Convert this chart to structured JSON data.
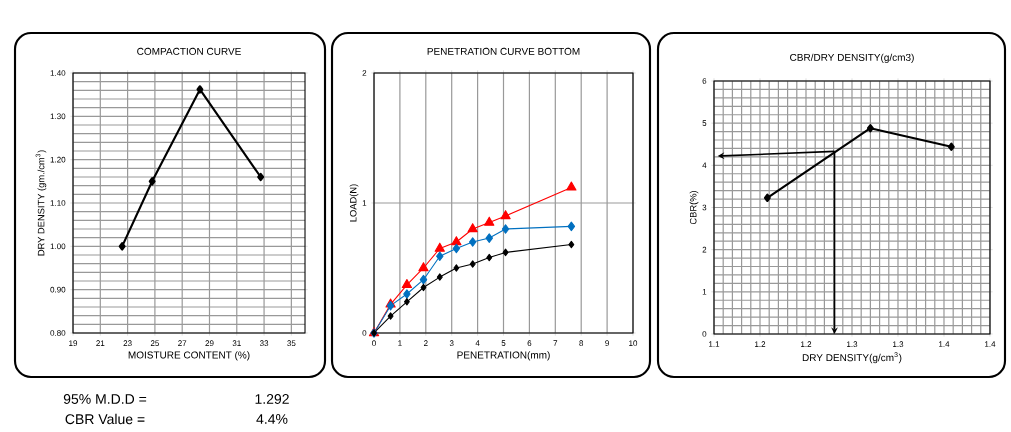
{
  "chart_data": [
    {
      "type": "line",
      "title": "COMPACTION CURVE",
      "xlabel": "MOISTURE CONTENT (%)",
      "ylabel": "DRY DENSITY (gm./cm$^{3}$)",
      "x": [
        22.6,
        24.8,
        28.3,
        32.75
      ],
      "values": [
        1.0,
        1.15,
        1.362,
        1.16
      ],
      "color": "#000000",
      "marker": "diamond",
      "line_style": "solid",
      "xlim": [
        19,
        36
      ],
      "xticks": [
        19,
        21,
        23,
        25,
        27,
        29,
        31,
        33,
        35
      ],
      "ylim": [
        0.8,
        1.4
      ],
      "yticks": [
        {
          "value": 0.8,
          "label": "0.80"
        },
        {
          "value": 0.9,
          "label": "0.90"
        },
        {
          "value": 1.0,
          "label": "1.00"
        },
        {
          "value": 1.1,
          "label": "1.10"
        },
        {
          "value": 1.2,
          "label": "1.20"
        },
        {
          "value": 1.3,
          "label": "1.30"
        },
        {
          "value": 1.4,
          "label": "1.40"
        }
      ],
      "grid": true,
      "annotations": [
        "95% M.D.D =",
        "1.292",
        "CBR Value =",
        "4.4%"
      ]
    },
    {
      "type": "line",
      "title": "PENETRATION CURVE BOTTOM",
      "xlabel": "PENETRATION(mm)",
      "ylabel": "LOAD(N)",
      "x": [
        0,
        0.64,
        1.27,
        1.91,
        2.54,
        3.18,
        3.81,
        4.45,
        5.08,
        7.62
      ],
      "series": [
        {
          "color": "#ff0000",
          "marker": "triangle",
          "values": [
            0,
            0.22,
            0.37,
            0.5,
            0.65,
            0.7,
            0.8,
            0.85,
            0.9,
            1.12
          ]
        },
        {
          "color": "#0070c0",
          "marker": "diamond",
          "values": [
            0,
            0.21,
            0.3,
            0.41,
            0.59,
            0.65,
            0.7,
            0.73,
            0.8,
            0.82
          ]
        },
        {
          "color": "#000000",
          "marker": "diamond",
          "values": [
            0,
            0.13,
            0.24,
            0.35,
            0.43,
            0.5,
            0.53,
            0.58,
            0.62,
            0.68
          ]
        }
      ],
      "line_style": "solid",
      "xlim": [
        0,
        10
      ],
      "xticks": [
        0,
        1,
        2,
        3,
        4,
        5,
        6,
        7,
        8,
        9,
        10
      ],
      "ylim": [
        0,
        2
      ],
      "yticks": [
        0,
        1,
        2
      ],
      "grid": true
    },
    {
      "type": "line",
      "title": "CBR/DRY DENSITY(g/cm3)",
      "xlabel": "DRY DENSITY(g/cm$^{3}$)",
      "ylabel": "CBR(%)",
      "series": [
        {
          "x": [
            1.158,
            1.27,
            1.358
          ],
          "values": [
            3.23,
            4.88,
            4.44
          ],
          "color": "#000000",
          "marker": "diamond"
        }
      ],
      "line_style": "solid",
      "xlim": [
        1.1,
        1.4
      ],
      "xticks": [
        {
          "value": 1.1,
          "label": "1.1"
        },
        {
          "value": 1.15,
          "label": "1.2"
        },
        {
          "value": 1.2,
          "label": "1.2"
        },
        {
          "value": 1.25,
          "label": "1.3"
        },
        {
          "value": 1.3,
          "label": "1.3"
        },
        {
          "value": 1.35,
          "label": "1.4"
        },
        {
          "value": 1.4,
          "label": "1.4"
        }
      ],
      "ylim": [
        0,
        6
      ],
      "yticks": [
        0,
        1,
        2,
        3,
        4,
        5,
        6
      ],
      "grid": true
    }
  ]
}
